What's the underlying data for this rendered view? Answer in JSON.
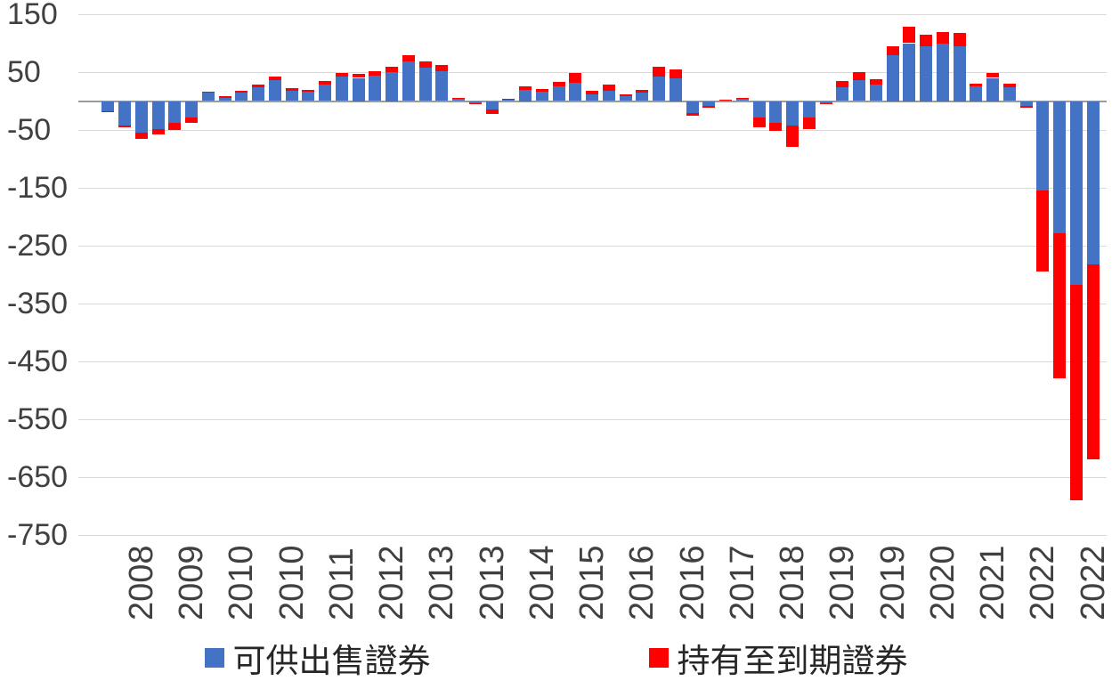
{
  "chart_data": {
    "type": "bar",
    "stacked": true,
    "title": "",
    "xlabel": "",
    "ylabel": "",
    "ylim": [
      -750,
      150
    ],
    "grid": true,
    "legend_position": "bottom",
    "gridline_color": "#D9D9D9",
    "zero_line_color": "#9B9B9B",
    "text_color": "#404040",
    "y_ticks": [
      {
        "label": "150",
        "value": 150
      },
      {
        "label": "50",
        "value": 50
      },
      {
        "label": "-50",
        "value": -50
      },
      {
        "label": "-150",
        "value": -150
      },
      {
        "label": "-250",
        "value": -250
      },
      {
        "label": "-350",
        "value": -350
      },
      {
        "label": "-450",
        "value": -450
      },
      {
        "label": "-550",
        "value": -550
      },
      {
        "label": "-650",
        "value": -650
      },
      {
        "label": "-750",
        "value": -750
      }
    ],
    "x_labels": [
      "",
      "",
      "2008",
      "",
      "",
      "2009",
      "",
      "",
      "2010",
      "",
      "",
      "2010",
      "",
      "",
      "2011",
      "",
      "",
      "2012",
      "",
      "",
      "2013",
      "",
      "",
      "2013",
      "",
      "",
      "2014",
      "",
      "",
      "2015",
      "",
      "",
      "2016",
      "",
      "",
      "2016",
      "",
      "",
      "2017",
      "",
      "",
      "2018",
      "",
      "",
      "2019",
      "",
      "",
      "2019",
      "",
      "",
      "2020",
      "",
      "",
      "2021",
      "",
      "",
      "2022",
      "",
      "",
      "2022"
    ],
    "series": [
      {
        "key": "afs",
        "name": "可供出售證券",
        "color": "#4472C4",
        "values": [
          -18,
          -42,
          -55,
          -48,
          -38,
          -28,
          14,
          6,
          14,
          24,
          36,
          18,
          16,
          28,
          42,
          40,
          44,
          50,
          68,
          58,
          52,
          4,
          -4,
          -14,
          3,
          20,
          16,
          26,
          32,
          12,
          18,
          8,
          14,
          42,
          40,
          -20,
          -8,
          2,
          4,
          -28,
          -38,
          -42,
          -28,
          -4,
          24,
          36,
          28,
          80,
          100,
          95,
          100,
          95,
          25,
          40,
          24,
          -8,
          -155,
          -228,
          -318,
          -282
        ]
      },
      {
        "key": "htm",
        "name": "持有至到期證券",
        "color": "#FF0000",
        "values": [
          -2,
          -4,
          -10,
          -10,
          -12,
          -10,
          2,
          3,
          4,
          5,
          7,
          4,
          4,
          6,
          6,
          7,
          8,
          9,
          12,
          10,
          10,
          1,
          -1,
          -8,
          1,
          5,
          5,
          7,
          16,
          5,
          10,
          4,
          6,
          18,
          15,
          -6,
          -3,
          1,
          1,
          -18,
          -14,
          -38,
          -20,
          -2,
          10,
          14,
          10,
          15,
          28,
          20,
          20,
          22,
          5,
          8,
          6,
          -4,
          -140,
          -252,
          -372,
          -338
        ]
      }
    ]
  }
}
